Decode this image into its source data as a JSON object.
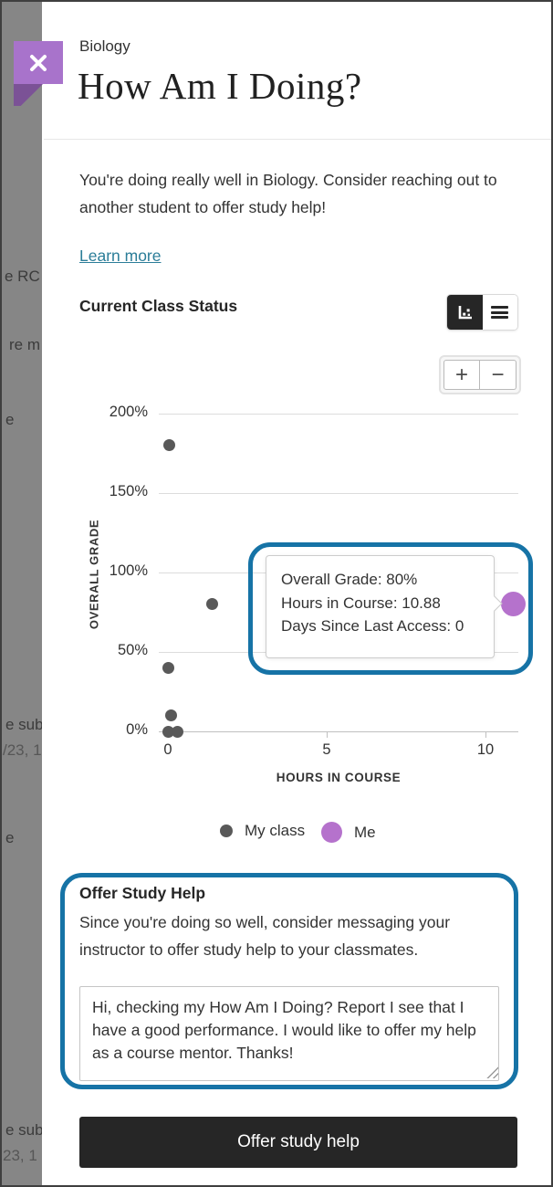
{
  "background_page": {
    "fragments": [
      {
        "text": "e RC a"
      },
      {
        "text": "re m"
      },
      {
        "text": "e"
      },
      {
        "text": "e subr"
      },
      {
        "text": "/23, 1"
      },
      {
        "text": "e"
      },
      {
        "text": "e subr"
      },
      {
        "text": "23, 1"
      }
    ]
  },
  "panel": {
    "accent_color": "#a2df81",
    "course_label": "Biology",
    "title": "How Am I Doing?",
    "intro": "You're doing really well in Biology. Consider reaching out to another student to offer study help!",
    "learn_more_label": "Learn more",
    "section_heading": "Current Class Status"
  },
  "view_toggle": {
    "chart_view_icon": "scatter-chart-icon",
    "list_view_icon": "list-icon",
    "active_view": "chart"
  },
  "zoom_controls": {
    "zoom_in_label": "+",
    "zoom_out_label": "−"
  },
  "chart_data": {
    "type": "scatter",
    "title": "Current Class Status",
    "xlabel": "HOURS IN COURSE",
    "ylabel": "OVERALL GRADE",
    "x_ticks": [
      "0",
      "5",
      "10"
    ],
    "y_ticks": [
      "0%",
      "50%",
      "100%",
      "150%",
      "200%"
    ],
    "xlim": [
      0,
      11
    ],
    "ylim": [
      0,
      200
    ],
    "grid": "horizontal",
    "legend_position": "bottom",
    "series": [
      {
        "name": "My class",
        "color": "#595959",
        "points": [
          {
            "x": 0.05,
            "y": 180
          },
          {
            "x": 1.4,
            "y": 80
          },
          {
            "x": 0,
            "y": 40
          },
          {
            "x": 0.1,
            "y": 10
          },
          {
            "x": 0,
            "y": 0
          },
          {
            "x": 0.3,
            "y": 0
          }
        ]
      },
      {
        "name": "Me",
        "color": "#b572cc",
        "points": [
          {
            "x": 10.88,
            "y": 80
          }
        ]
      }
    ]
  },
  "chart_tooltip": {
    "lines": [
      "Overall Grade: 80%",
      "Hours in Course: 10.88",
      "Days Since Last Access: 0"
    ]
  },
  "legend": {
    "items": [
      {
        "label": "My class",
        "color": "#595959"
      },
      {
        "label": "Me",
        "color": "#b572cc"
      }
    ]
  },
  "offer_study_help": {
    "heading": "Offer Study Help",
    "description": "Since you're doing so well, consider messaging your instructor to offer study help to your classmates.",
    "message_value": "Hi, checking my How Am I Doing? Report I see that I have a good performance. I would like to offer my help as a course mentor. Thanks!",
    "submit_label": "Offer study help"
  },
  "highlight_color": "#1673a6"
}
